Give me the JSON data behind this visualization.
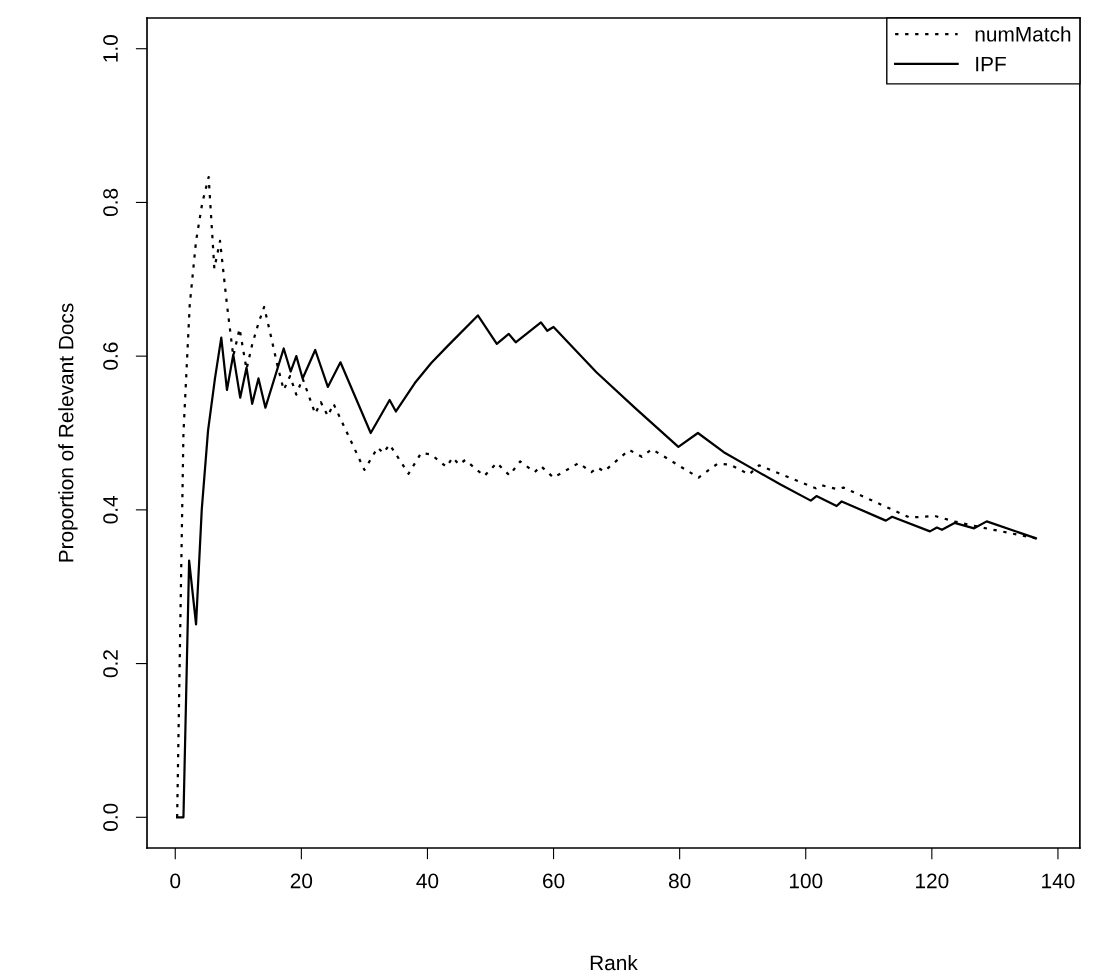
{
  "chart_data": {
    "type": "line",
    "xlabel": "Rank",
    "ylabel": "Proportion of Relevant Docs",
    "xlim": [
      -4.48,
      143.48
    ],
    "ylim": [
      -0.04,
      1.04
    ],
    "xticks": [
      0,
      20,
      40,
      60,
      80,
      100,
      120,
      140
    ],
    "yticks": [
      {
        "value": 0,
        "label": "0.0"
      },
      {
        "value": 0.2,
        "label": "0.2"
      },
      {
        "value": 0.4,
        "label": "0.4"
      },
      {
        "value": 0.6,
        "label": "0.6"
      },
      {
        "value": 0.8,
        "label": "0.8"
      },
      {
        "value": 1,
        "label": "1.0"
      }
    ],
    "grid": false,
    "legend": "top right",
    "marker": "none",
    "series": [
      {
        "name": "numMatch",
        "color": "#000000",
        "line_style": "dotted",
        "x": [
          0.3,
          1.3,
          2.3,
          3.3,
          4.3,
          5.3,
          6.2,
          7.1,
          8.2,
          9.2,
          10.2,
          11.3,
          12.2,
          13.2,
          14.1,
          15.2,
          16.2,
          17.2,
          18.2,
          19.2,
          20.2,
          22.2,
          23.1,
          24.2,
          25.1,
          30,
          32.1,
          33,
          34,
          37,
          39,
          40.6,
          43,
          44,
          45,
          46,
          49,
          51,
          53,
          54.7,
          57,
          58,
          60,
          64,
          66,
          67,
          68,
          72,
          74,
          75.6,
          83,
          86,
          88,
          91,
          92.6,
          101.6,
          102.5,
          105,
          106,
          116.5,
          120.5,
          123.5,
          128,
          136.5
        ],
        "values": [
          0,
          0.5,
          0.667,
          0.75,
          0.8,
          0.833,
          0.714,
          0.75,
          0.667,
          0.6,
          0.636,
          0.583,
          0.615,
          0.643,
          0.664,
          0.625,
          0.588,
          0.556,
          0.574,
          0.55,
          0.571,
          0.525,
          0.54,
          0.522,
          0.538,
          0.452,
          0.481,
          0.474,
          0.485,
          0.447,
          0.474,
          0.472,
          0.456,
          0.468,
          0.459,
          0.465,
          0.444,
          0.461,
          0.445,
          0.463,
          0.449,
          0.457,
          0.442,
          0.461,
          0.449,
          0.455,
          0.45,
          0.478,
          0.469,
          0.479,
          0.442,
          0.46,
          0.459,
          0.446,
          0.458,
          0.428,
          0.432,
          0.427,
          0.429,
          0.39,
          0.392,
          0.385,
          0.377,
          0.363
        ]
      },
      {
        "name": "IPF",
        "color": "#000000",
        "line_style": "solid",
        "x": [
          0.3,
          1.3,
          2.2,
          3.3,
          4.2,
          5.2,
          6.3,
          7.3,
          8.2,
          9.2,
          10.3,
          11.3,
          12.2,
          13.2,
          14.3,
          17.2,
          18.3,
          19.2,
          20.2,
          22.2,
          24.2,
          26.2,
          31,
          34,
          35,
          38,
          40.6,
          43.3,
          48,
          51,
          52.9,
          54,
          58,
          59,
          60,
          63,
          66.8,
          73,
          79.8,
          82.9,
          87,
          91.9,
          96,
          100.8,
          101.7,
          104.9,
          105.7,
          112.7,
          113.7,
          119.7,
          120.8,
          121.6,
          123.6,
          126.7,
          128.7,
          136.5
        ],
        "values": [
          0,
          0,
          0.334,
          0.251,
          0.4,
          0.503,
          0.571,
          0.624,
          0.556,
          0.602,
          0.546,
          0.585,
          0.538,
          0.571,
          0.533,
          0.61,
          0.58,
          0.6,
          0.571,
          0.608,
          0.56,
          0.592,
          0.5,
          0.543,
          0.528,
          0.565,
          0.591,
          0.614,
          0.653,
          0.616,
          0.629,
          0.618,
          0.644,
          0.633,
          0.638,
          0.612,
          0.579,
          0.532,
          0.482,
          0.5,
          0.475,
          0.452,
          0.433,
          0.412,
          0.418,
          0.405,
          0.411,
          0.386,
          0.391,
          0.372,
          0.377,
          0.374,
          0.383,
          0.376,
          0.385,
          0.363
        ]
      }
    ]
  }
}
